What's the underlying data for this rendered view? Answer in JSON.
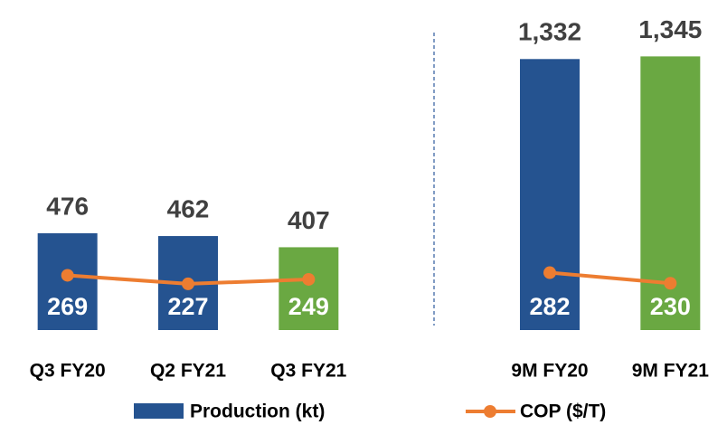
{
  "chart_data": {
    "type": "bar_line",
    "categories": [
      "Q3 FY20",
      "Q2 FY21",
      "Q3 FY21",
      null,
      "9M FY20",
      "9M FY21"
    ],
    "series": [
      {
        "name": "Production (kt)",
        "type": "bar",
        "color": "#255390",
        "colors": [
          "#255390",
          "#255390",
          "#6aa842",
          null,
          "#255390",
          "#6aa842"
        ],
        "values": [
          476,
          462,
          407,
          null,
          1332,
          1345
        ],
        "value_labels": [
          "476",
          "462",
          "407",
          null,
          "1,332",
          "1,345"
        ]
      },
      {
        "name": "COP ($/T)",
        "type": "line",
        "color": "#ed7d31",
        "axis": "y2",
        "values": [
          269,
          227,
          249,
          null,
          282,
          230
        ]
      }
    ],
    "ylim": [
      0,
      1400
    ],
    "y2lim": [
      0,
      1400
    ]
  }
}
